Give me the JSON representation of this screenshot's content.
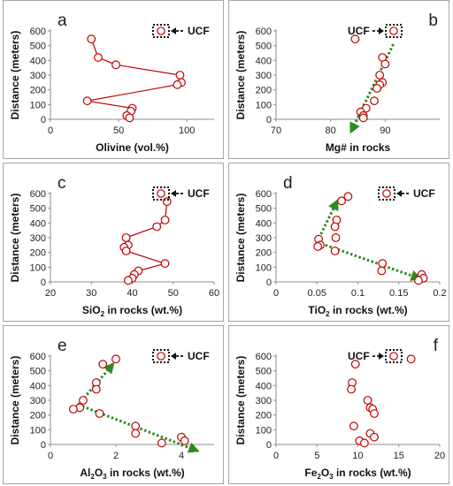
{
  "marker_color": "#c00000",
  "trend_color": "#2e8b22",
  "ytitle": "Distance (meters)",
  "y_axis": {
    "ylim": [
      0,
      600
    ],
    "ticks": [
      "0",
      "100",
      "200",
      "300",
      "400",
      "500",
      "600"
    ]
  },
  "chart_data": [
    {
      "type": "line",
      "letter": "a",
      "xlabel": [
        {
          "t": "Olivine (vol.%)"
        }
      ],
      "xlim": [
        0,
        120
      ],
      "xticks": [
        "0",
        "50",
        "100"
      ],
      "x": [
        30,
        35,
        48,
        95,
        96,
        93,
        27,
        60,
        59,
        56,
        58
      ],
      "y": [
        545,
        420,
        370,
        300,
        250,
        235,
        125,
        75,
        55,
        25,
        10
      ],
      "connected": true,
      "ucf": {
        "label": "UCF",
        "side": "right"
      },
      "trend": []
    },
    {
      "type": "scatter",
      "letter": "b",
      "xlabel": [
        {
          "t": "Mg# in rocks"
        }
      ],
      "xlim": [
        70,
        100
      ],
      "xticks": [
        "70",
        "80",
        "90"
      ],
      "x": [
        84.5,
        89.5,
        90,
        89,
        89.5,
        89,
        88.5,
        88,
        86.5,
        85.5,
        86,
        86
      ],
      "y": [
        545,
        420,
        375,
        300,
        250,
        235,
        210,
        125,
        75,
        50,
        25,
        10
      ],
      "connected": false,
      "ucf": {
        "label": "UCF",
        "side": "left"
      },
      "trend": [
        {
          "x1": 91.5,
          "y1": 510,
          "x2": 84,
          "y2": -65,
          "arrow_at": "end"
        }
      ]
    },
    {
      "type": "line",
      "letter": "c",
      "xlabel": [
        {
          "t": "SiO"
        },
        {
          "t": "2",
          "sub": true
        },
        {
          "t": "  in rocks (wt.%)"
        }
      ],
      "xlim": [
        20,
        60
      ],
      "xticks": [
        "20",
        "30",
        "40",
        "50",
        "60"
      ],
      "x": [
        48.5,
        48,
        46,
        38.5,
        39,
        38,
        38.5,
        48,
        41.5,
        40.5,
        40,
        39
      ],
      "y": [
        545,
        420,
        375,
        300,
        250,
        235,
        210,
        125,
        75,
        50,
        25,
        10
      ],
      "connected": true,
      "ucf": {
        "label": "UCF",
        "side": "right"
      },
      "trend": []
    },
    {
      "type": "scatter",
      "letter": "d",
      "xlabel": [
        {
          "t": "TiO"
        },
        {
          "t": "2",
          "sub": true
        },
        {
          "t": " in rocks (wt.%)"
        }
      ],
      "xlim": [
        0,
        0.2
      ],
      "xticks": [
        "0",
        "0.05",
        "0.1",
        "0.15",
        "0.2"
      ],
      "x": [
        0.088,
        0.08,
        0.074,
        0.072,
        0.073,
        0.052,
        0.054,
        0.051,
        0.072,
        0.13,
        0.129,
        0.178,
        0.18,
        0.174
      ],
      "y": [
        580,
        550,
        420,
        375,
        300,
        290,
        250,
        240,
        210,
        125,
        75,
        50,
        25,
        10
      ],
      "connected": false,
      "ucf": {
        "label": "UCF",
        "side": "right"
      },
      "trend": [
        {
          "x1": 0.05,
          "y1": 270,
          "x2": 0.073,
          "y2": 530,
          "arrow_at": "end"
        },
        {
          "x1": 0.05,
          "y1": 270,
          "x2": 0.172,
          "y2": 30,
          "arrow_at": "end"
        }
      ]
    },
    {
      "type": "scatter",
      "letter": "e",
      "xlabel": [
        {
          "t": "Al"
        },
        {
          "t": "2",
          "sub": true
        },
        {
          "t": "O"
        },
        {
          "t": "3",
          "sub": true
        },
        {
          "t": " in rocks (wt.%)"
        }
      ],
      "xlim": [
        0,
        5
      ],
      "xticks": [
        "0",
        "2",
        "4"
      ],
      "x": [
        2,
        1.6,
        1.4,
        1.4,
        1,
        0.9,
        0.7,
        1.5,
        2.6,
        2.6,
        4,
        4.1,
        3.4
      ],
      "y": [
        580,
        545,
        420,
        375,
        300,
        250,
        240,
        210,
        125,
        75,
        50,
        25,
        10
      ],
      "connected": false,
      "ucf": {
        "label": "UCF",
        "side": "right"
      },
      "trend": [
        {
          "x1": 0.85,
          "y1": 270,
          "x2": 1.85,
          "y2": 530,
          "arrow_at": "end"
        },
        {
          "x1": 0.85,
          "y1": 270,
          "x2": 4.4,
          "y2": -35,
          "arrow_at": "end"
        }
      ]
    },
    {
      "type": "scatter",
      "letter": "f",
      "xlabel": [
        {
          "t": "Fe"
        },
        {
          "t": "2",
          "sub": true
        },
        {
          "t": "O"
        },
        {
          "t": "3",
          "sub": true
        },
        {
          "t": " in rocks (wt.%)"
        }
      ],
      "xlim": [
        0,
        20
      ],
      "xticks": [
        "0",
        "5",
        "10",
        "15",
        "20"
      ],
      "x": [
        16.5,
        9.7,
        9.3,
        9.2,
        11.2,
        11.5,
        11.8,
        12,
        9.5,
        11.5,
        12,
        10.2,
        10.8
      ],
      "y": [
        580,
        545,
        420,
        375,
        300,
        250,
        240,
        210,
        125,
        75,
        50,
        25,
        10
      ],
      "connected": false,
      "ucf": {
        "label": "UCF",
        "side": "left"
      },
      "trend": []
    }
  ]
}
